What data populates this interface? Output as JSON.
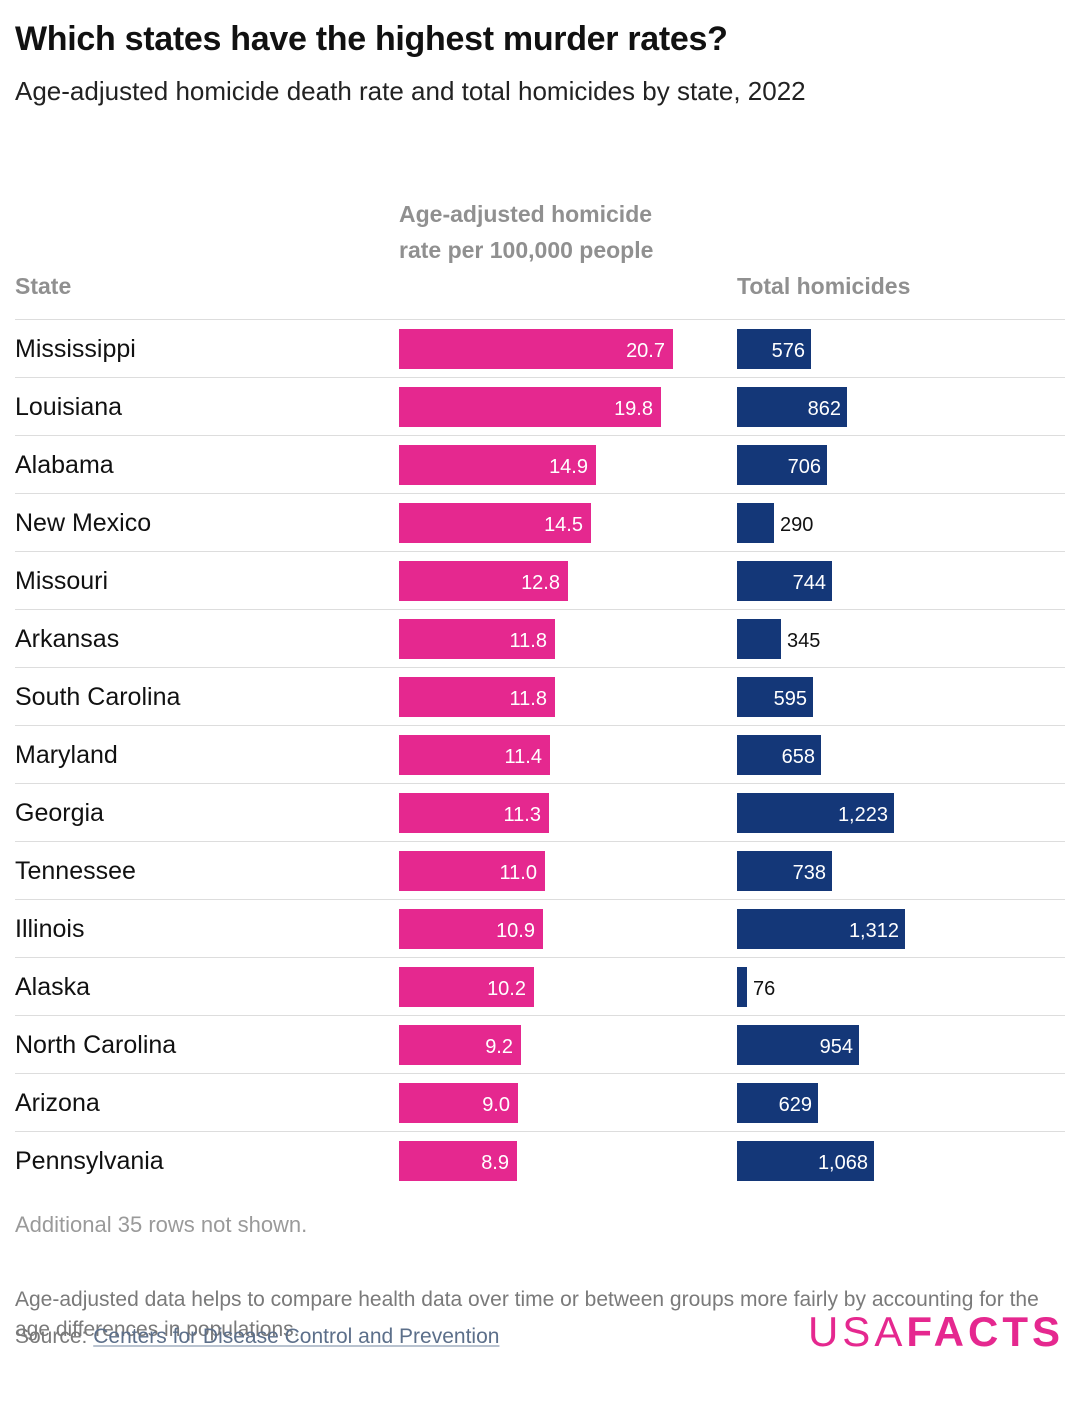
{
  "title": "Which states have the highest murder rates?",
  "subtitle": "Age-adjusted homicide death rate and total homicides by state, 2022",
  "columns": {
    "state": "State",
    "rate": "Age-adjusted homicide rate per 100,000 people",
    "total": "Total homicides"
  },
  "colors": {
    "rate_bar": "#e5288f",
    "total_bar": "#143778"
  },
  "chart_data": {
    "type": "table",
    "columns": [
      "State",
      "Age-adjusted homicide rate per 100,000 people",
      "Total homicides"
    ],
    "rows": [
      {
        "state": "Mississippi",
        "rate": 20.7,
        "rate_label": "20.7",
        "total": 576,
        "total_label": "576"
      },
      {
        "state": "Louisiana",
        "rate": 19.8,
        "rate_label": "19.8",
        "total": 862,
        "total_label": "862"
      },
      {
        "state": "Alabama",
        "rate": 14.9,
        "rate_label": "14.9",
        "total": 706,
        "total_label": "706"
      },
      {
        "state": "New Mexico",
        "rate": 14.5,
        "rate_label": "14.5",
        "total": 290,
        "total_label": "290"
      },
      {
        "state": "Missouri",
        "rate": 12.8,
        "rate_label": "12.8",
        "total": 744,
        "total_label": "744"
      },
      {
        "state": "Arkansas",
        "rate": 11.8,
        "rate_label": "11.8",
        "total": 345,
        "total_label": "345"
      },
      {
        "state": "South Carolina",
        "rate": 11.8,
        "rate_label": "11.8",
        "total": 595,
        "total_label": "595"
      },
      {
        "state": "Maryland",
        "rate": 11.4,
        "rate_label": "11.4",
        "total": 658,
        "total_label": "658"
      },
      {
        "state": "Georgia",
        "rate": 11.3,
        "rate_label": "11.3",
        "total": 1223,
        "total_label": "1,223"
      },
      {
        "state": "Tennessee",
        "rate": 11.0,
        "rate_label": "11.0",
        "total": 738,
        "total_label": "738"
      },
      {
        "state": "Illinois",
        "rate": 10.9,
        "rate_label": "10.9",
        "total": 1312,
        "total_label": "1,312"
      },
      {
        "state": "Alaska",
        "rate": 10.2,
        "rate_label": "10.2",
        "total": 76,
        "total_label": "76"
      },
      {
        "state": "North Carolina",
        "rate": 9.2,
        "rate_label": "9.2",
        "total": 954,
        "total_label": "954"
      },
      {
        "state": "Arizona",
        "rate": 9.0,
        "rate_label": "9.0",
        "total": 629,
        "total_label": "629"
      },
      {
        "state": "Pennsylvania",
        "rate": 8.9,
        "rate_label": "8.9",
        "total": 1068,
        "total_label": "1,068"
      }
    ]
  },
  "rows_note": "Additional 35 rows not shown.",
  "footnote": "Age-adjusted data helps to compare health data over time or between groups more fairly by accounting for the age differences in populations.",
  "source": {
    "prefix": "Source: ",
    "link_text": "Centers for Disease Control and Prevention"
  },
  "logo": {
    "part1": "USA",
    "part2": "FACTS"
  }
}
